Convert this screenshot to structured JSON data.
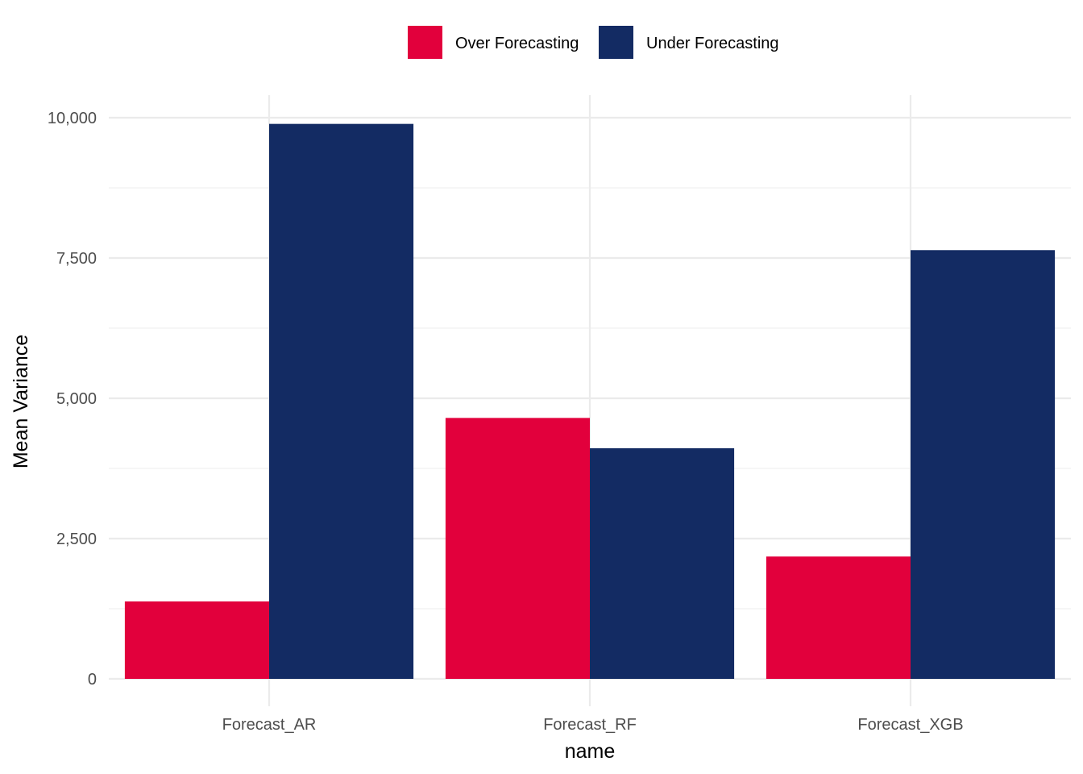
{
  "chart_data": {
    "type": "bar",
    "categories": [
      "Forecast_AR",
      "Forecast_RF",
      "Forecast_XGB"
    ],
    "series": [
      {
        "name": "Over Forecasting",
        "color": "#e2003c",
        "values": [
          1380,
          4650,
          2180
        ]
      },
      {
        "name": "Under Forecasting",
        "color": "#132b63",
        "values": [
          9890,
          4110,
          7640
        ]
      }
    ],
    "xlabel": "name",
    "ylabel": "Mean Variance",
    "ylim": [
      0,
      10000
    ],
    "yticks": [
      0,
      2500,
      5000,
      7500,
      10000
    ],
    "ytick_labels": [
      "0",
      "2,500",
      "5,000",
      "7,500",
      "10,000"
    ],
    "legend_position": "top",
    "grid": true
  }
}
